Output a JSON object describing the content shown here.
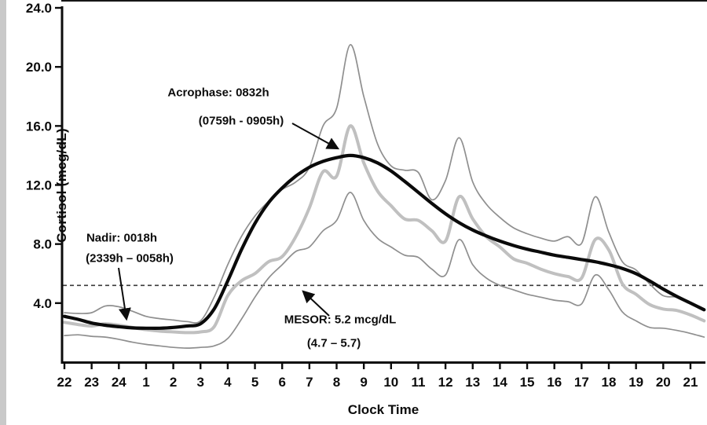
{
  "figure": {
    "ylabel": "Cortisol (mcg/dL)",
    "xlabel": "Clock Time"
  },
  "annotations": {
    "acrophase_line1": "Acrophase: 0832h",
    "acrophase_line2": "(0759h - 0905h)",
    "nadir_line1": "Nadir: 0018h",
    "nadir_line2": "(2339h – 0058h)",
    "mesor_line1": "MESOR: 5.2 mcg/dL",
    "mesor_line2": "(4.7 –  5.7)"
  },
  "chart_data": {
    "type": "line",
    "title": "",
    "xlabel": "Clock Time",
    "ylabel": "Cortisol (mcg/dL)",
    "x_clock_labels": [
      "22",
      "23",
      "24",
      "1",
      "2",
      "3",
      "4",
      "5",
      "6",
      "7",
      "8",
      "9",
      "10",
      "11",
      "12",
      "13",
      "14",
      "15",
      "16",
      "17",
      "18",
      "19",
      "20",
      "21"
    ],
    "x_start_hour": 22,
    "t_step_hours": 0.5,
    "y_ticks": [
      4.0,
      8.0,
      12.0,
      16.0,
      20.0,
      24.0
    ],
    "ylim": [
      0,
      24
    ],
    "grid": false,
    "parameters": {
      "mesor_mcg_dl": 5.2,
      "mesor_ci": [
        4.7,
        5.7
      ],
      "acrophase": "0832h",
      "acrophase_ci": [
        "0759h",
        "0905h"
      ],
      "nadir": "0018h",
      "nadir_ci": [
        "2339h",
        "0058h"
      ]
    },
    "mesor_line": {
      "value": 5.2,
      "style": "dashed",
      "color": "#3a3a3a"
    },
    "series": [
      {
        "name": "upper-95ci",
        "color": "#8f8f8f",
        "width": 1.7,
        "values": [
          3.35,
          3.3,
          3.35,
          3.8,
          3.75,
          3.45,
          3.1,
          2.95,
          2.85,
          2.75,
          2.8,
          4.4,
          6.6,
          8.5,
          9.9,
          10.9,
          11.7,
          12.2,
          13.2,
          16.0,
          17.2,
          21.5,
          18.0,
          14.8,
          13.3,
          13.0,
          12.85,
          11.0,
          12.3,
          15.2,
          12.2,
          10.7,
          9.8,
          9.1,
          8.7,
          8.4,
          8.2,
          8.5,
          8.05,
          11.2,
          8.8,
          6.8,
          6.25,
          5.3,
          4.5,
          4.4,
          4.0,
          3.6
        ]
      },
      {
        "name": "lower-95ci",
        "color": "#8f8f8f",
        "width": 1.7,
        "values": [
          1.8,
          1.85,
          1.75,
          1.7,
          1.55,
          1.35,
          1.2,
          1.1,
          1.0,
          0.95,
          1.0,
          1.1,
          1.6,
          2.9,
          4.4,
          5.7,
          6.6,
          7.5,
          7.8,
          8.9,
          9.6,
          11.5,
          9.6,
          8.4,
          7.8,
          7.25,
          7.1,
          6.3,
          5.9,
          8.3,
          6.6,
          5.7,
          5.2,
          4.9,
          4.6,
          4.4,
          4.2,
          4.1,
          3.95,
          5.9,
          4.9,
          3.4,
          2.8,
          2.35,
          2.3,
          2.15,
          1.95,
          1.7
        ]
      },
      {
        "name": "group-mean",
        "color": "#c0c0c0",
        "width": 4,
        "values": [
          2.7,
          2.55,
          2.45,
          2.6,
          2.5,
          2.35,
          2.2,
          2.1,
          2.05,
          2.0,
          2.05,
          2.4,
          4.5,
          5.5,
          6.0,
          6.8,
          7.15,
          8.5,
          10.45,
          12.9,
          12.6,
          16.0,
          13.5,
          11.6,
          10.6,
          9.7,
          9.6,
          8.9,
          8.2,
          11.2,
          9.7,
          8.5,
          7.8,
          7.0,
          6.7,
          6.3,
          6.0,
          5.8,
          5.7,
          8.3,
          7.6,
          5.3,
          4.6,
          3.9,
          3.6,
          3.5,
          3.2,
          2.8
        ]
      },
      {
        "name": "cosinor-fit",
        "color": "#0a0a0a",
        "width": 4.2,
        "values": [
          3.1,
          2.9,
          2.65,
          2.5,
          2.4,
          2.32,
          2.3,
          2.3,
          2.35,
          2.45,
          2.6,
          3.6,
          5.5,
          7.6,
          9.4,
          10.8,
          11.8,
          12.6,
          13.2,
          13.6,
          13.85,
          14.0,
          13.85,
          13.5,
          12.95,
          12.25,
          11.5,
          10.75,
          10.05,
          9.45,
          8.95,
          8.55,
          8.2,
          7.9,
          7.65,
          7.45,
          7.25,
          7.1,
          6.95,
          6.8,
          6.6,
          6.35,
          6.0,
          5.5,
          4.95,
          4.45,
          4.0,
          3.55
        ]
      }
    ]
  }
}
